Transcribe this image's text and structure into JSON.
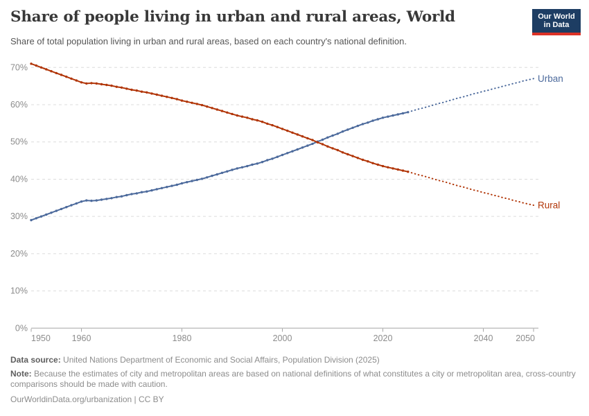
{
  "header": {
    "title": "Share of people living in urban and rural areas, World",
    "subtitle": "Share of total population living in urban and rural areas, based on each country's national definition.",
    "logo": {
      "line1": "Our World",
      "line2": "in Data",
      "bg_color": "#1d3d63",
      "accent_color": "#dc3226"
    }
  },
  "chart_data": {
    "type": "line",
    "title": "Share of people living in urban and rural areas, World",
    "xlabel": "",
    "ylabel": "",
    "x_range": [
      1950,
      2050
    ],
    "ylim": [
      0,
      70
    ],
    "grid": true,
    "legend_position": "end-of-line",
    "projection_note": "values after 2025 are projections drawn dotted",
    "xticks": [
      1950,
      1960,
      1980,
      2000,
      2020,
      2040,
      2050
    ],
    "xtick_labels": [
      "1950",
      "1960",
      "1980",
      "2000",
      "2020",
      "2040",
      "2050"
    ],
    "yticks": [
      0,
      10,
      20,
      30,
      40,
      50,
      60,
      70
    ],
    "ytick_labels": [
      "0%",
      "10%",
      "20%",
      "30%",
      "40%",
      "50%",
      "60%",
      "70%"
    ],
    "years": [
      1950,
      1951,
      1952,
      1953,
      1954,
      1955,
      1956,
      1957,
      1958,
      1959,
      1960,
      1961,
      1962,
      1963,
      1964,
      1965,
      1966,
      1967,
      1968,
      1969,
      1970,
      1971,
      1972,
      1973,
      1974,
      1975,
      1976,
      1977,
      1978,
      1979,
      1980,
      1981,
      1982,
      1983,
      1984,
      1985,
      1986,
      1987,
      1988,
      1989,
      1990,
      1991,
      1992,
      1993,
      1994,
      1995,
      1996,
      1997,
      1998,
      1999,
      2000,
      2001,
      2002,
      2003,
      2004,
      2005,
      2006,
      2007,
      2008,
      2009,
      2010,
      2011,
      2012,
      2013,
      2014,
      2015,
      2016,
      2017,
      2018,
      2019,
      2020,
      2021,
      2022,
      2023,
      2024,
      2025,
      2026,
      2027,
      2028,
      2029,
      2030,
      2031,
      2032,
      2033,
      2034,
      2035,
      2036,
      2037,
      2038,
      2039,
      2040,
      2041,
      2042,
      2043,
      2044,
      2045,
      2046,
      2047,
      2048,
      2049,
      2050
    ],
    "series": [
      {
        "name": "Urban",
        "color": "#4c6a9c",
        "projection_from_year": 2025,
        "values": [
          29.0,
          29.5,
          30.0,
          30.5,
          31.0,
          31.5,
          32.0,
          32.5,
          33.0,
          33.5,
          34.0,
          34.3,
          34.2,
          34.3,
          34.5,
          34.7,
          34.9,
          35.2,
          35.4,
          35.7,
          36.0,
          36.2,
          36.5,
          36.7,
          37.0,
          37.3,
          37.6,
          37.9,
          38.2,
          38.5,
          38.9,
          39.2,
          39.5,
          39.8,
          40.1,
          40.5,
          40.9,
          41.3,
          41.7,
          42.1,
          42.5,
          42.9,
          43.2,
          43.5,
          43.9,
          44.2,
          44.6,
          45.1,
          45.5,
          46.0,
          46.5,
          47.0,
          47.5,
          48.0,
          48.5,
          49.0,
          49.5,
          50.1,
          50.6,
          51.2,
          51.7,
          52.2,
          52.8,
          53.3,
          53.8,
          54.3,
          54.8,
          55.2,
          55.7,
          56.1,
          56.5,
          56.8,
          57.1,
          57.4,
          57.7,
          58.0,
          58.4,
          58.8,
          59.1,
          59.5,
          59.9,
          60.3,
          60.6,
          61.0,
          61.4,
          61.8,
          62.1,
          62.5,
          62.9,
          63.2,
          63.6,
          63.9,
          64.3,
          64.6,
          65.0,
          65.3,
          65.7,
          66.0,
          66.4,
          66.7,
          67.0
        ]
      },
      {
        "name": "Rural",
        "color": "#b13507",
        "projection_from_year": 2025,
        "values": [
          71.0,
          70.5,
          70.0,
          69.5,
          69.0,
          68.5,
          68.0,
          67.5,
          67.0,
          66.5,
          66.0,
          65.7,
          65.8,
          65.7,
          65.5,
          65.3,
          65.1,
          64.8,
          64.6,
          64.3,
          64.0,
          63.8,
          63.5,
          63.3,
          63.0,
          62.7,
          62.4,
          62.1,
          61.8,
          61.5,
          61.1,
          60.8,
          60.5,
          60.2,
          59.9,
          59.5,
          59.1,
          58.7,
          58.3,
          57.9,
          57.5,
          57.1,
          56.8,
          56.5,
          56.1,
          55.8,
          55.4,
          54.9,
          54.5,
          54.0,
          53.5,
          53.0,
          52.5,
          52.0,
          51.5,
          51.0,
          50.5,
          49.9,
          49.4,
          48.8,
          48.3,
          47.8,
          47.2,
          46.7,
          46.2,
          45.7,
          45.2,
          44.8,
          44.3,
          43.9,
          43.5,
          43.2,
          42.9,
          42.6,
          42.3,
          42.0,
          41.6,
          41.2,
          40.9,
          40.5,
          40.1,
          39.7,
          39.4,
          39.0,
          38.6,
          38.2,
          37.9,
          37.5,
          37.1,
          36.8,
          36.4,
          36.1,
          35.7,
          35.4,
          35.0,
          34.7,
          34.3,
          34.0,
          33.6,
          33.3,
          33.0
        ]
      }
    ]
  },
  "footer": {
    "source_label": "Data source:",
    "source_text": "United Nations Department of Economic and Social Affairs, Population Division (2025)",
    "note_label": "Note:",
    "note_text": "Because the estimates of city and metropolitan areas are based on national definitions of what constitutes a city or metropolitan area, cross-country comparisons should be made with caution.",
    "link": "OurWorldinData.org/urbanization",
    "separator": "|",
    "license": "CC BY"
  }
}
